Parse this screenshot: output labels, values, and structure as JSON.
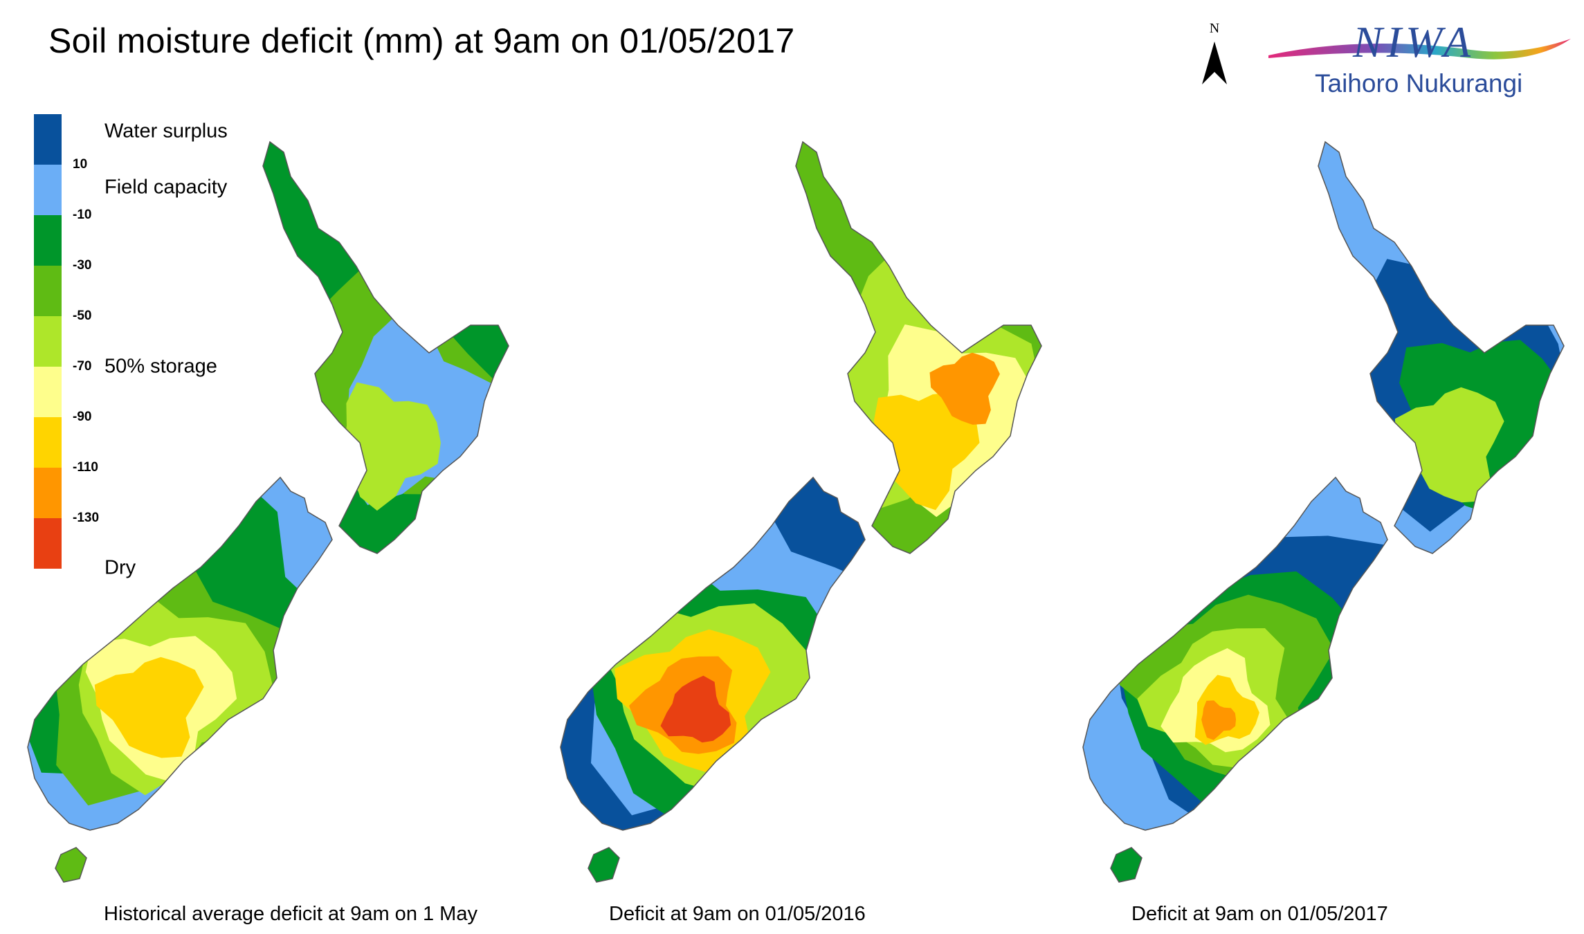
{
  "title": "Soil moisture deficit (mm) at  9am on 01/05/2017",
  "north_label": "N",
  "logo": {
    "wordmark": "NIWA",
    "tagline": "Taihoro Nukurangi"
  },
  "legend": {
    "bins": [
      {
        "color": "#08519c"
      },
      {
        "color": "#6baef6"
      },
      {
        "color": "#00962a"
      },
      {
        "color": "#5fbb14"
      },
      {
        "color": "#aee62a"
      },
      {
        "color": "#fefe8c"
      },
      {
        "color": "#ffd400"
      },
      {
        "color": "#ff9600"
      },
      {
        "color": "#e84012"
      }
    ],
    "ticks": [
      "10",
      "-10",
      "-30",
      "-50",
      "-70",
      "-90",
      "-110",
      "-130"
    ],
    "categories": {
      "surplus": "Water surplus",
      "field": "Field capacity",
      "half": "50% storage",
      "dry": "Dry"
    }
  },
  "maps": [
    {
      "caption": "Historical average deficit at  9am on 1 May",
      "north_island": [
        "#00962a",
        "#5fbb14",
        "#6baef6",
        "#aee62a"
      ],
      "south_island": [
        "#6baef6",
        "#00962a",
        "#5fbb14",
        "#aee62a",
        "#fefe8c",
        "#ffd400"
      ]
    },
    {
      "caption": "Deficit at  9am on 01/05/2016",
      "north_island": [
        "#5fbb14",
        "#aee62a",
        "#fefe8c",
        "#ffd400",
        "#ff9600"
      ],
      "south_island": [
        "#08519c",
        "#6baef6",
        "#00962a",
        "#aee62a",
        "#ffd400",
        "#ff9600",
        "#e84012"
      ]
    },
    {
      "caption": "Deficit at  9am on 01/05/2017",
      "north_island": [
        "#6baef6",
        "#08519c",
        "#00962a",
        "#aee62a"
      ],
      "south_island": [
        "#6baef6",
        "#08519c",
        "#00962a",
        "#5fbb14",
        "#aee62a",
        "#fefe8c",
        "#ffd400",
        "#ff9600"
      ]
    }
  ]
}
